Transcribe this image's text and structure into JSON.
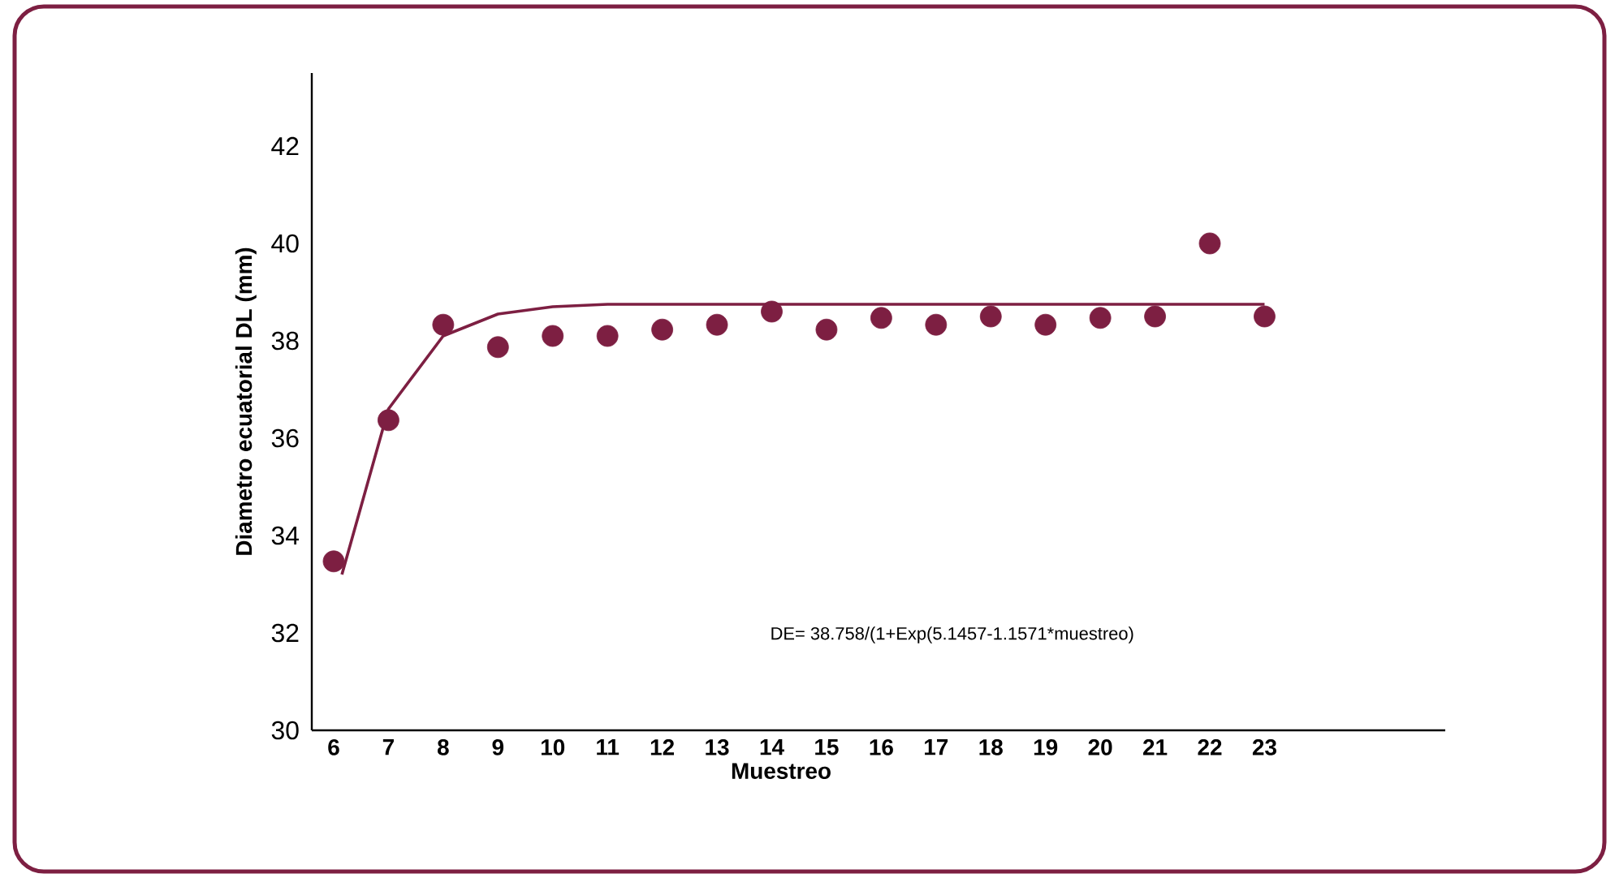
{
  "chart_data": {
    "type": "scatter",
    "xlabel": "Muestreo",
    "ylabel": "Diametro ecuatorial  DL (mm)",
    "xlim": [
      5.6,
      26.3
    ],
    "ylim": [
      30,
      43.5
    ],
    "xticks": [
      6,
      7,
      8,
      9,
      10,
      11,
      12,
      13,
      14,
      15,
      16,
      17,
      18,
      19,
      20,
      21,
      22,
      23
    ],
    "yticks": [
      30,
      32,
      34,
      36,
      38,
      40,
      42
    ],
    "series": [
      {
        "color": "#7d1f42",
        "marker": "circle",
        "x": [
          6,
          7,
          8,
          9,
          10,
          11,
          12,
          13,
          14,
          15,
          16,
          17,
          18,
          19,
          20,
          21,
          22,
          23
        ],
        "values": [
          33.47,
          36.37,
          38.33,
          37.87,
          38.1,
          38.1,
          38.23,
          38.33,
          38.6,
          38.23,
          38.47,
          38.33,
          38.5,
          38.33,
          38.47,
          38.5,
          40.0,
          38.5
        ]
      },
      {
        "type": "line",
        "color": "#7d1f42",
        "line_style": "solid",
        "marker": "none",
        "x": [
          6.15,
          7,
          8,
          9,
          10,
          11,
          23
        ],
        "values": [
          33.2,
          36.6,
          38.1,
          38.55,
          38.7,
          38.75,
          38.75
        ]
      }
    ],
    "annotations": [
      "DE= 38.758/(1+Exp(5.1457-1.1571*muestreo)"
    ]
  }
}
